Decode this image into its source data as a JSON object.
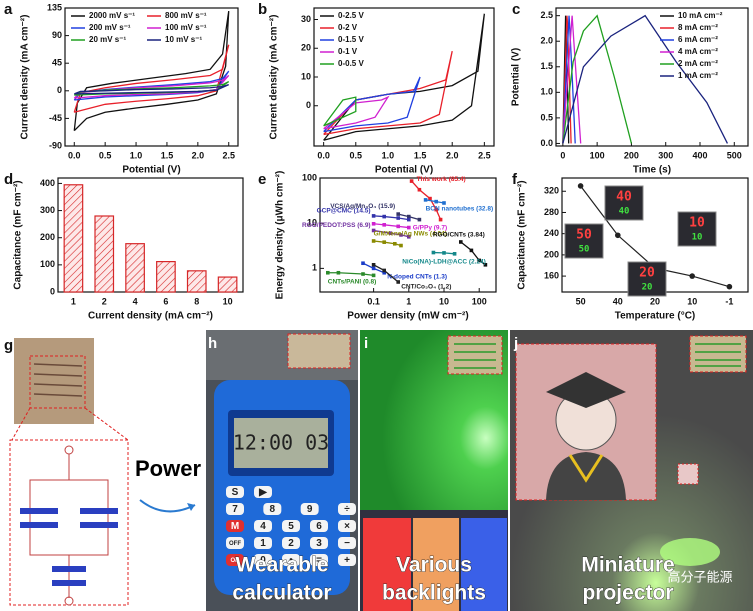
{
  "chart_data": [
    {
      "panel": "a",
      "type": "line",
      "xlabel": "Potential (V)",
      "ylabel": "Current density (mA cm⁻²)",
      "xlim": [
        -0.15,
        2.65
      ],
      "xticks": [
        {
          "value": 0,
          "label": "0.0"
        },
        0.5,
        {
          "value": 1,
          "label": "1.0"
        },
        1.5,
        {
          "value": 2,
          "label": "2.0"
        },
        2.5
      ],
      "ylim": [
        -90,
        135
      ],
      "yticks": [
        -90,
        -45,
        0,
        45,
        90,
        135
      ],
      "legend": "upper left",
      "legend_columns": 2,
      "series": [
        {
          "name": "2000 mV s⁻¹",
          "color": "#111111",
          "x": [
            0,
            0.2,
            0.5,
            1.0,
            1.5,
            2.0,
            2.3,
            2.45,
            2.5,
            2.4,
            2.2,
            1.8,
            1.2,
            0.6,
            0.2,
            0.05,
            0
          ],
          "values": [
            -65,
            -45,
            -35,
            -28,
            -22,
            -15,
            -5,
            40,
            130,
            60,
            35,
            28,
            20,
            12,
            5,
            -20,
            -65
          ]
        },
        {
          "name": "800 mV s⁻¹",
          "color": "#e8202a",
          "x": [
            0,
            0.5,
            1,
            1.5,
            2,
            2.3,
            2.5,
            2.4,
            2.2,
            1.6,
            1,
            0.5,
            0.1,
            0
          ],
          "values": [
            -35,
            -22,
            -17,
            -13,
            -8,
            0,
            75,
            35,
            25,
            18,
            12,
            5,
            -3,
            -35
          ]
        },
        {
          "name": "200 mV s⁻¹",
          "color": "#2040e0",
          "x": [
            0,
            0.5,
            1,
            1.5,
            2,
            2.3,
            2.5,
            2.4,
            2.2,
            1.6,
            1,
            0.5,
            0.1,
            0
          ],
          "values": [
            -15,
            -10,
            -8,
            -6,
            -3,
            2,
            32,
            20,
            15,
            10,
            6,
            2,
            -3,
            -15
          ]
        },
        {
          "name": "100 mV s⁻¹",
          "color": "#d020d0",
          "x": [
            0,
            0.5,
            1,
            1.5,
            2,
            2.3,
            2.5,
            2.4,
            2.2,
            1.6,
            1,
            0.5,
            0.1,
            0
          ],
          "values": [
            -12,
            -8,
            -6,
            -5,
            -2,
            2,
            25,
            17,
            13,
            8,
            5,
            1,
            -3,
            -12
          ]
        },
        {
          "name": "20 mV s⁻¹",
          "color": "#20a020",
          "x": [
            0,
            0.5,
            1,
            1.5,
            2,
            2.3,
            2.5,
            2.4,
            2.2,
            1.6,
            1,
            0.5,
            0.1,
            0
          ],
          "values": [
            -7,
            -5,
            -4,
            -3,
            -1,
            1,
            15,
            10,
            8,
            5,
            3,
            1,
            -2,
            -7
          ]
        },
        {
          "name": "10 mV s⁻¹",
          "color": "#1a237e",
          "x": [
            0,
            0.5,
            1,
            1.5,
            2,
            2.3,
            2.5,
            2.4,
            2.2,
            1.6,
            1,
            0.5,
            0.1,
            0
          ],
          "values": [
            -5,
            -4,
            -3,
            -2,
            -1,
            1,
            10,
            7,
            5,
            3,
            2,
            0,
            -1,
            -5
          ]
        }
      ]
    },
    {
      "panel": "b",
      "type": "line",
      "xlabel": "Potential (V)",
      "ylabel": "Current density (mA cm⁻²)",
      "xlim": [
        -0.15,
        2.65
      ],
      "xticks": [
        {
          "value": 0,
          "label": "0.0"
        },
        0.5,
        {
          "value": 1,
          "label": "1.0"
        },
        1.5,
        {
          "value": 2,
          "label": "2.0"
        },
        2.5
      ],
      "ylim": [
        -14,
        34
      ],
      "yticks": [
        0,
        10,
        20,
        30
      ],
      "legend": "upper left",
      "legend_columns": 1,
      "series": [
        {
          "name": "0-2.5 V",
          "color": "#111111",
          "x": [
            0,
            0.5,
            1,
            1.5,
            2,
            2.3,
            2.5,
            2.4,
            2,
            1.5,
            1,
            0.5,
            0
          ],
          "values": [
            -12,
            -9,
            -8,
            -7,
            -5,
            0,
            32,
            12,
            7,
            5,
            4,
            2,
            -12
          ]
        },
        {
          "name": "0-2 V",
          "color": "#e8202a",
          "x": [
            0,
            0.5,
            1,
            1.5,
            1.8,
            2,
            1.9,
            1.5,
            1,
            0.5,
            0
          ],
          "values": [
            -10,
            -8,
            -7,
            -6,
            -3,
            19,
            9,
            6,
            4,
            2,
            -10
          ]
        },
        {
          "name": "0-1.5 V",
          "color": "#2040e0",
          "x": [
            0,
            0.5,
            1,
            1.3,
            1.5,
            1.4,
            1,
            0.5,
            0
          ],
          "values": [
            -9,
            -7,
            -6,
            -4,
            10,
            5,
            4,
            2,
            -9
          ]
        },
        {
          "name": "0-1 V",
          "color": "#d020d0",
          "x": [
            0,
            0.5,
            0.8,
            1,
            0.9,
            0.5,
            0
          ],
          "values": [
            -8,
            -6,
            -4,
            3,
            2,
            1,
            -8
          ]
        },
        {
          "name": "0-0.5 V",
          "color": "#20a020",
          "x": [
            0,
            0.3,
            0.5,
            0.5,
            0.3,
            0
          ],
          "values": [
            -7,
            -4,
            -2,
            3,
            2,
            -7
          ]
        }
      ]
    },
    {
      "panel": "c",
      "type": "line",
      "xlabel": "Time (s)",
      "ylabel": "Potential (V)",
      "xlim": [
        -20,
        540
      ],
      "xticks": [
        0,
        100,
        200,
        300,
        400,
        500
      ],
      "ylim": [
        -0.05,
        2.65
      ],
      "yticks": [
        {
          "value": 0,
          "label": "0.0"
        },
        0.5,
        {
          "value": 1,
          "label": "1.0"
        },
        1.5,
        {
          "value": 2,
          "label": "2.0"
        },
        2.5
      ],
      "legend": "upper right",
      "legend_columns": 1,
      "series": [
        {
          "name": "10 mA cm⁻²",
          "color": "#111111",
          "x": [
            0,
            8,
            9,
            13,
            17
          ],
          "values": [
            0,
            2.5,
            2.4,
            1.2,
            0
          ]
        },
        {
          "name": "8 mA cm⁻²",
          "color": "#e8202a",
          "x": [
            0,
            12,
            13,
            19,
            24
          ],
          "values": [
            0,
            2.5,
            2.4,
            1.2,
            0
          ]
        },
        {
          "name": "6 mA cm⁻²",
          "color": "#2040e0",
          "x": [
            0,
            18,
            19,
            28,
            36
          ],
          "values": [
            0,
            2.5,
            2.4,
            1.2,
            0
          ]
        },
        {
          "name": "4 mA cm⁻²",
          "color": "#d020d0",
          "x": [
            0,
            27,
            28,
            40,
            52
          ],
          "values": [
            0,
            2.5,
            2.4,
            1.2,
            0
          ]
        },
        {
          "name": "2 mA cm⁻²",
          "color": "#20a020",
          "x": [
            0,
            30,
            60,
            100,
            104,
            150,
            200
          ],
          "values": [
            0,
            1.6,
            2.2,
            2.5,
            2.4,
            1.3,
            0
          ]
        },
        {
          "name": "1 mA cm⁻²",
          "color": "#1a237e",
          "x": [
            0,
            60,
            140,
            240,
            250,
            330,
            420,
            480
          ],
          "values": [
            0,
            1.5,
            2.1,
            2.5,
            2.4,
            1.6,
            0.8,
            0
          ]
        }
      ]
    },
    {
      "panel": "d",
      "type": "bar",
      "xlabel": "Current density (mA cm⁻²)",
      "ylabel": "Capacitance (mF cm⁻²)",
      "categories": [
        "1",
        "2",
        "4",
        "6",
        "8",
        "10"
      ],
      "values": [
        395,
        280,
        178,
        112,
        78,
        55
      ],
      "color": "#d62728",
      "hatch": true,
      "ylim": [
        0,
        420
      ],
      "yticks": [
        0,
        100,
        200,
        300,
        400
      ]
    },
    {
      "panel": "e",
      "type": "line",
      "xlabel": "Power density (mW cm⁻²)",
      "ylabel": "Energy density (μWh cm⁻²)",
      "xscale": "log",
      "yscale": "log",
      "xlim": [
        0.003,
        300
      ],
      "ylim": [
        0.3,
        100
      ],
      "xticks": [
        0.1,
        1,
        10,
        100
      ],
      "yticks": [
        1,
        10,
        100
      ],
      "legend": "labels",
      "markers": true,
      "series": [
        {
          "name": "This work (85.4)",
          "color": "#e8202a",
          "x": [
            1.2,
            2,
            4,
            6,
            8
          ],
          "values": [
            85.4,
            55,
            35,
            20,
            12
          ]
        },
        {
          "name": "VCS/Ag/Mn₃O₄ (15.9)",
          "color": "#333366",
          "x": [
            0.5,
            1,
            2
          ],
          "values": [
            15.9,
            14,
            12
          ]
        },
        {
          "name": "BCN nanotubes (32.8)",
          "color": "#1f6fd0",
          "x": [
            3,
            6,
            10
          ],
          "values": [
            32.8,
            30,
            28
          ]
        },
        {
          "name": "GCP@CMC (14.5)",
          "color": "#3333aa",
          "x": [
            0.1,
            0.2,
            0.5,
            1
          ],
          "values": [
            14.5,
            14,
            13,
            12
          ]
        },
        {
          "name": "G/PPy (9.7)",
          "color": "#d020d0",
          "x": [
            0.1,
            0.2,
            0.5,
            1
          ],
          "values": [
            9.7,
            9.2,
            8.5,
            8
          ]
        },
        {
          "name": "RGO/PEDOT:PSS (6.9)",
          "color": "#7030a0",
          "x": [
            0.1,
            0.3,
            0.6,
            1
          ],
          "values": [
            6.9,
            6,
            5.5,
            5
          ]
        },
        {
          "name": "G/MXene/Ag NWs (4.04)",
          "color": "#8a8a00",
          "x": [
            0.1,
            0.2,
            0.4,
            0.6
          ],
          "values": [
            4.04,
            3.8,
            3.5,
            3.2
          ]
        },
        {
          "name": "RGO/CNTs (3.84)",
          "color": "#111111",
          "x": [
            30,
            60,
            100,
            150
          ],
          "values": [
            3.84,
            2.5,
            1.5,
            1.2
          ]
        },
        {
          "name": "NiCo(NA)-LDH@ACC (2.24)",
          "color": "#14888a",
          "x": [
            5,
            10,
            20
          ],
          "values": [
            2.24,
            2.2,
            2.1
          ]
        },
        {
          "name": "N-doped CNTs (1.3)",
          "color": "#1a3cc8",
          "x": [
            0.05,
            0.1,
            0.2
          ],
          "values": [
            1.3,
            1.0,
            0.8
          ]
        },
        {
          "name": "CNTs/PANI (0.8)",
          "color": "#2a8a2a",
          "x": [
            0.005,
            0.01,
            0.05,
            0.1
          ],
          "values": [
            0.8,
            0.8,
            0.75,
            0.7
          ]
        },
        {
          "name": "CNT/Co₃O₄ (1.2)",
          "color": "#222222",
          "x": [
            0.1,
            0.2,
            0.5
          ],
          "values": [
            1.2,
            0.9,
            0.5
          ]
        }
      ]
    },
    {
      "panel": "f",
      "type": "line",
      "xlabel": "Temperature (°C)",
      "ylabel": "Capacitance (mF cm⁻²)",
      "categories": [
        "50",
        "40",
        "20",
        "10",
        "-1"
      ],
      "values": [
        330,
        237,
        175,
        160,
        140
      ],
      "color": "#222222",
      "markers": true,
      "ylim": [
        130,
        345
      ],
      "yticks": [
        160,
        200,
        240,
        280,
        320
      ],
      "inset_readings": [
        {
          "top": "40",
          "bottom": "40"
        },
        {
          "top": "50",
          "bottom": "50"
        },
        {
          "top": "10",
          "bottom": "10"
        },
        {
          "top": "20",
          "bottom": "20"
        }
      ]
    }
  ],
  "photos": [
    {
      "panel": "g",
      "caption": [
        "Power"
      ]
    },
    {
      "panel": "h",
      "caption": [
        "Wearable",
        "calculator"
      ],
      "display": "12:00 03",
      "keys": [
        "S",
        "▶",
        "7",
        "8",
        "9",
        "÷",
        "M",
        "4",
        "5",
        "6",
        "×",
        "OFF",
        "1",
        "2",
        "3",
        "−",
        "ON",
        "0",
        "•",
        "=",
        "+"
      ]
    },
    {
      "panel": "i",
      "caption": [
        "Various",
        "backlights"
      ]
    },
    {
      "panel": "j",
      "caption": [
        "Miniature",
        "projector"
      ]
    }
  ],
  "watermark": "高分子能源"
}
